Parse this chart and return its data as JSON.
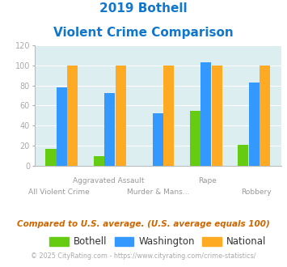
{
  "title_line1": "2019 Bothell",
  "title_line2": "Violent Crime Comparison",
  "categories": [
    "All Violent Crime",
    "Aggravated Assault",
    "Murder & Mans...",
    "Rape",
    "Robbery"
  ],
  "top_labels": [
    "",
    "Aggravated Assault",
    "",
    "Rape",
    ""
  ],
  "bottom_labels": [
    "All Violent Crime",
    "",
    "Murder & Mans...",
    "",
    "Robbery"
  ],
  "bothell": [
    17,
    9,
    0,
    55,
    21
  ],
  "washington": [
    78,
    72,
    52,
    103,
    83
  ],
  "national": [
    100,
    100,
    100,
    100,
    100
  ],
  "color_bothell": "#66cc11",
  "color_washington": "#3399ff",
  "color_national": "#ffaa22",
  "color_title": "#1177cc",
  "color_bg": "#ddeef0",
  "color_note": "#cc6600",
  "color_footer": "#aaaaaa",
  "color_tick": "#aaaaaa",
  "ylim": [
    0,
    120
  ],
  "yticks": [
    0,
    20,
    40,
    60,
    80,
    100,
    120
  ],
  "note_text": "Compared to U.S. average. (U.S. average equals 100)",
  "footer_text": "© 2025 CityRating.com - https://www.cityrating.com/crime-statistics/",
  "legend_labels": [
    "Bothell",
    "Washington",
    "National"
  ]
}
